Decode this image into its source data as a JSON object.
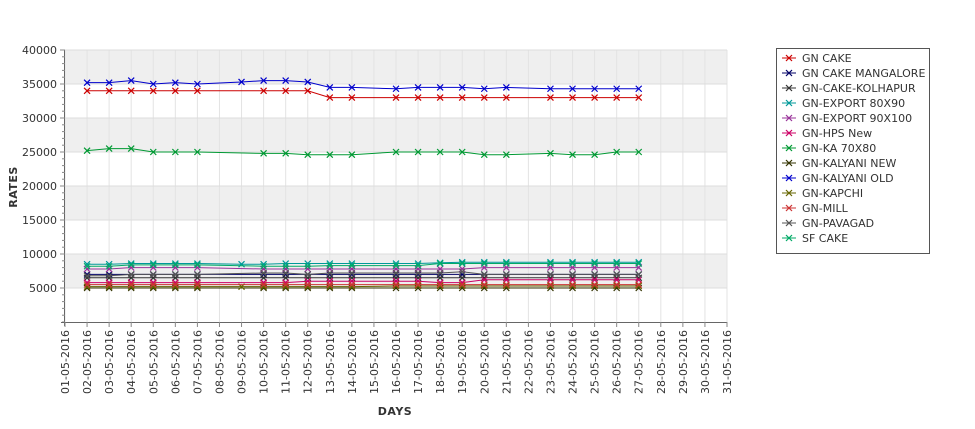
{
  "chart_data": {
    "type": "line",
    "title": "",
    "xlabel": "DAYS",
    "ylabel": "RATES",
    "ylim": [
      0,
      40000
    ],
    "yticks": [
      5000,
      10000,
      15000,
      20000,
      25000,
      30000,
      35000,
      40000
    ],
    "grid": "alternating horizontal bands",
    "legend_position": "right",
    "x": [
      "01-05-2016",
      "02-05-2016",
      "03-05-2016",
      "04-05-2016",
      "05-05-2016",
      "06-05-2016",
      "07-05-2016",
      "08-05-2016",
      "09-05-2016",
      "10-05-2016",
      "11-05-2016",
      "12-05-2016",
      "13-05-2016",
      "14-05-2016",
      "15-05-2016",
      "16-05-2016",
      "17-05-2016",
      "18-05-2016",
      "19-05-2016",
      "20-05-2016",
      "21-05-2016",
      "22-05-2016",
      "23-05-2016",
      "24-05-2016",
      "25-05-2016",
      "26-05-2016",
      "27-05-2016",
      "28-05-2016",
      "29-05-2016",
      "30-05-2016",
      "31-05-2016"
    ],
    "series": [
      {
        "name": "GN CAKE",
        "color": "#cc0000",
        "values": [
          null,
          34000,
          34000,
          34000,
          34000,
          34000,
          34000,
          null,
          null,
          34000,
          34000,
          34000,
          33000,
          33000,
          null,
          33000,
          33000,
          33000,
          33000,
          33000,
          33000,
          null,
          33000,
          33000,
          33000,
          33000,
          33000,
          null,
          null,
          null,
          null
        ]
      },
      {
        "name": "GN CAKE MANGALORE",
        "color": "#000066",
        "values": [
          null,
          7000,
          7000,
          7000,
          7000,
          7000,
          7000,
          null,
          null,
          7000,
          7000,
          7000,
          7000,
          7000,
          null,
          7000,
          7000,
          7000,
          7000,
          7000,
          7000,
          null,
          7000,
          7000,
          7000,
          7000,
          7000,
          null,
          null,
          null,
          null
        ]
      },
      {
        "name": "GN-CAKE-KOLHAPUR",
        "color": "#333333",
        "values": [
          null,
          6500,
          6500,
          6500,
          6500,
          6500,
          6500,
          null,
          null,
          6500,
          6500,
          6500,
          6500,
          6500,
          null,
          6500,
          6500,
          6500,
          6500,
          6500,
          6500,
          null,
          6500,
          6500,
          6500,
          6500,
          6500,
          null,
          null,
          null,
          null
        ]
      },
      {
        "name": "GN-EXPORT 80X90",
        "color": "#009999",
        "values": [
          null,
          8500,
          8500,
          8600,
          8600,
          8600,
          8600,
          null,
          8500,
          8500,
          8600,
          8600,
          8600,
          8600,
          null,
          8600,
          8600,
          8700,
          8800,
          8800,
          8800,
          null,
          8800,
          8800,
          8800,
          8800,
          8800,
          null,
          null,
          null,
          null
        ]
      },
      {
        "name": "GN-EXPORT 90X100",
        "color": "#993399",
        "values": [
          null,
          7800,
          7800,
          8000,
          8000,
          8000,
          8000,
          null,
          null,
          7800,
          7800,
          7800,
          7800,
          7800,
          null,
          7800,
          7800,
          7800,
          7800,
          8000,
          8000,
          null,
          8000,
          8000,
          8000,
          8000,
          8000,
          null,
          null,
          null,
          null
        ]
      },
      {
        "name": "GN-HPS New",
        "color": "#cc0066",
        "values": [
          null,
          5800,
          5800,
          5800,
          5800,
          5800,
          5800,
          null,
          null,
          5800,
          5800,
          6000,
          6000,
          6000,
          null,
          6000,
          6000,
          5800,
          5800,
          6200,
          6200,
          null,
          6200,
          6200,
          6200,
          6200,
          6200,
          null,
          null,
          null,
          null
        ]
      },
      {
        "name": "GN-KA 70X80",
        "color": "#009933",
        "values": [
          null,
          25200,
          25500,
          25500,
          25000,
          25000,
          25000,
          null,
          null,
          24800,
          24800,
          24600,
          24600,
          24600,
          null,
          25000,
          25000,
          25000,
          25000,
          24600,
          24600,
          null,
          24800,
          24600,
          24600,
          25000,
          25000,
          null,
          null,
          null,
          null
        ]
      },
      {
        "name": "GN-KALYANI NEW",
        "color": "#333300",
        "values": [
          null,
          5000,
          5000,
          5000,
          5000,
          5000,
          5000,
          null,
          null,
          5000,
          5000,
          5000,
          5000,
          5000,
          null,
          5000,
          5000,
          5000,
          5000,
          5000,
          5000,
          null,
          5000,
          5000,
          5000,
          5000,
          5000,
          null,
          null,
          null,
          null
        ]
      },
      {
        "name": "GN-KALYANI OLD",
        "color": "#0000cc",
        "values": [
          null,
          35200,
          35200,
          35500,
          35000,
          35200,
          35000,
          null,
          35300,
          35500,
          35500,
          35300,
          34500,
          34500,
          null,
          34300,
          34500,
          34500,
          34500,
          34300,
          34500,
          null,
          34300,
          34300,
          34300,
          34300,
          34300,
          null,
          null,
          null,
          null
        ]
      },
      {
        "name": "GN-KAPCHI",
        "color": "#666600",
        "values": [
          null,
          5200,
          5200,
          5200,
          5200,
          5200,
          5200,
          null,
          5200,
          5200,
          5200,
          5200,
          5200,
          5200,
          null,
          5300,
          5300,
          5300,
          5300,
          5300,
          5300,
          null,
          5300,
          5300,
          5300,
          5300,
          5300,
          null,
          null,
          null,
          null
        ]
      },
      {
        "name": "GN-MILL",
        "color": "#cc3333",
        "values": [
          null,
          5500,
          5500,
          5500,
          5500,
          5500,
          5500,
          null,
          null,
          5500,
          5500,
          5500,
          5500,
          5500,
          null,
          5500,
          5500,
          5500,
          5500,
          5500,
          5500,
          null,
          5500,
          5500,
          5500,
          5500,
          5500,
          null,
          null,
          null,
          null
        ]
      },
      {
        "name": "GN-PAVAGAD",
        "color": "#555555",
        "values": [
          null,
          6800,
          6800,
          7000,
          7000,
          7000,
          7000,
          null,
          null,
          7200,
          7200,
          7000,
          7200,
          7200,
          null,
          7200,
          7200,
          7200,
          7400,
          7000,
          7000,
          null,
          7000,
          7000,
          7000,
          7000,
          7000,
          null,
          null,
          null,
          null
        ]
      },
      {
        "name": "SF CAKE",
        "color": "#00aa66",
        "values": [
          null,
          8200,
          8200,
          8400,
          8400,
          8400,
          8400,
          null,
          null,
          8200,
          8200,
          8200,
          8300,
          8300,
          null,
          8300,
          8300,
          8600,
          8600,
          8600,
          8600,
          null,
          8600,
          8600,
          8600,
          8600,
          8600,
          null,
          null,
          null,
          null
        ]
      }
    ]
  }
}
